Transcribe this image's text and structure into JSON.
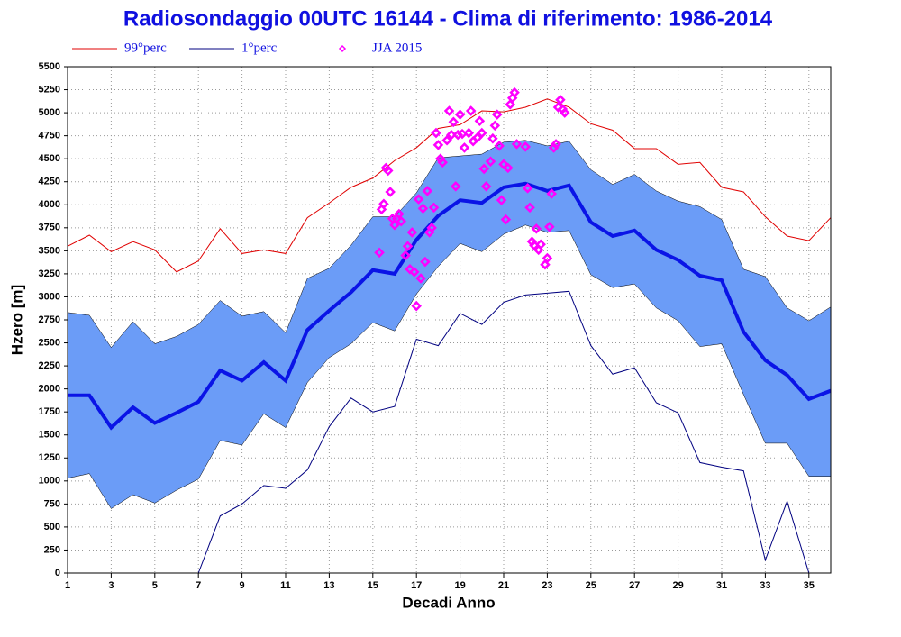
{
  "chart_data": {
    "type": "line",
    "title": "Radiosondaggio 00UTC 16144 - Clima di riferimento: 1986-2014",
    "x_label": "Decadi Anno",
    "y_label": "Hzero [m]",
    "x": [
      1,
      2,
      3,
      4,
      5,
      6,
      7,
      8,
      9,
      10,
      11,
      12,
      13,
      14,
      15,
      16,
      17,
      18,
      19,
      20,
      21,
      22,
      23,
      24,
      25,
      26,
      27,
      28,
      29,
      30,
      31,
      32,
      33,
      34,
      35,
      36
    ],
    "xlim": [
      1,
      36
    ],
    "xticks": [
      1,
      3,
      5,
      7,
      9,
      11,
      13,
      15,
      17,
      19,
      21,
      23,
      25,
      27,
      29,
      31,
      33,
      35
    ],
    "ylim": [
      0,
      5500
    ],
    "yticks": [
      0,
      250,
      500,
      750,
      1000,
      1250,
      1500,
      1750,
      2000,
      2250,
      2500,
      2750,
      3000,
      3250,
      3500,
      3750,
      4000,
      4250,
      4500,
      4750,
      5000,
      5250,
      5500
    ],
    "grid": true,
    "band": {
      "color": "#6b9cf7",
      "upper": [
        2830,
        2800,
        2450,
        2730,
        2490,
        2570,
        2700,
        2960,
        2790,
        2840,
        2610,
        3200,
        3310,
        3560,
        3870,
        3870,
        4130,
        4510,
        4530,
        4550,
        4680,
        4700,
        4640,
        4690,
        4380,
        4220,
        4330,
        4150,
        4040,
        3980,
        3840,
        3300,
        3220,
        2880,
        2740,
        2890
      ],
      "lower": [
        1030,
        1080,
        700,
        850,
        760,
        900,
        1020,
        1440,
        1390,
        1730,
        1580,
        2070,
        2340,
        2490,
        2720,
        2630,
        3030,
        3330,
        3580,
        3490,
        3680,
        3780,
        3700,
        3720,
        3240,
        3100,
        3140,
        2880,
        2740,
        2460,
        2490,
        1940,
        1410,
        1410,
        1050,
        1050
      ]
    },
    "series": [
      {
        "color": "#0a14e6",
        "width": 4,
        "values": [
          1930,
          1930,
          1580,
          1800,
          1630,
          1740,
          1860,
          2200,
          2090,
          2290,
          2090,
          2640,
          2850,
          3050,
          3290,
          3250,
          3620,
          3880,
          4050,
          4020,
          4190,
          4230,
          4150,
          4210,
          3810,
          3660,
          3720,
          3510,
          3400,
          3230,
          3180,
          2620,
          2310,
          2150,
          1890,
          1980
        ]
      },
      {
        "name": "99°perc",
        "color": "#e00000",
        "width": 1,
        "values": [
          3550,
          3670,
          3490,
          3600,
          3510,
          3270,
          3390,
          3740,
          3470,
          3510,
          3470,
          3860,
          4020,
          4190,
          4290,
          4480,
          4620,
          4830,
          4870,
          5020,
          5010,
          5060,
          5150,
          5060,
          4880,
          4810,
          4610,
          4610,
          4440,
          4460,
          4190,
          4140,
          3870,
          3660,
          3610,
          3860
        ]
      },
      {
        "name": "1°perc",
        "color": "#000080",
        "width": 1,
        "values": [
          null,
          null,
          null,
          null,
          null,
          null,
          0,
          620,
          750,
          950,
          920,
          1120,
          1590,
          1900,
          1750,
          1810,
          2540,
          2470,
          2820,
          2700,
          2940,
          3020,
          3040,
          3060,
          2470,
          2160,
          2230,
          1850,
          1740,
          1200,
          1150,
          1110,
          140,
          780,
          0,
          null
        ]
      },
      {
        "name": "JJA 2015",
        "color": "#ff00ff",
        "marker": "diamond",
        "x": [
          15.3,
          15.4,
          15.5,
          15.6,
          15.7,
          15.8,
          15.9,
          16.0,
          16.1,
          16.2,
          16.3,
          16.5,
          16.6,
          16.7,
          16.8,
          16.9,
          17.0,
          17.1,
          17.2,
          17.3,
          17.4,
          17.5,
          17.6,
          17.7,
          17.8,
          17.9,
          18.0,
          18.1,
          18.2,
          18.4,
          18.5,
          18.6,
          18.7,
          18.8,
          18.9,
          19.0,
          19.1,
          19.2,
          19.4,
          19.5,
          19.6,
          19.8,
          19.9,
          20.0,
          20.1,
          20.2,
          20.4,
          20.5,
          20.6,
          20.7,
          20.8,
          20.9,
          21.0,
          21.1,
          21.2,
          21.3,
          21.4,
          21.5,
          21.6,
          22.0,
          22.1,
          22.2,
          22.3,
          22.4,
          22.5,
          22.6,
          22.7,
          22.9,
          23.0,
          23.1,
          23.2,
          23.3,
          23.4,
          23.5,
          23.6,
          23.7,
          23.8
        ],
        "values": [
          3480,
          3950,
          4010,
          4400,
          4370,
          4140,
          3850,
          3780,
          3850,
          3900,
          3820,
          3450,
          3550,
          3300,
          3700,
          3270,
          2900,
          4060,
          3200,
          3960,
          3380,
          4150,
          3700,
          3750,
          3970,
          4780,
          4650,
          4500,
          4460,
          4700,
          5020,
          4760,
          4900,
          4200,
          4760,
          4980,
          4770,
          4620,
          4780,
          5020,
          4690,
          4730,
          4910,
          4780,
          4390,
          4200,
          4470,
          4720,
          4860,
          4980,
          4640,
          4050,
          4440,
          3840,
          4400,
          5090,
          5160,
          5220,
          4660,
          4630,
          4180,
          3970,
          3600,
          3560,
          3740,
          3510,
          3570,
          3350,
          3420,
          3760,
          4120,
          4620,
          4660,
          5060,
          5140,
          5040,
          5000
        ]
      }
    ]
  }
}
